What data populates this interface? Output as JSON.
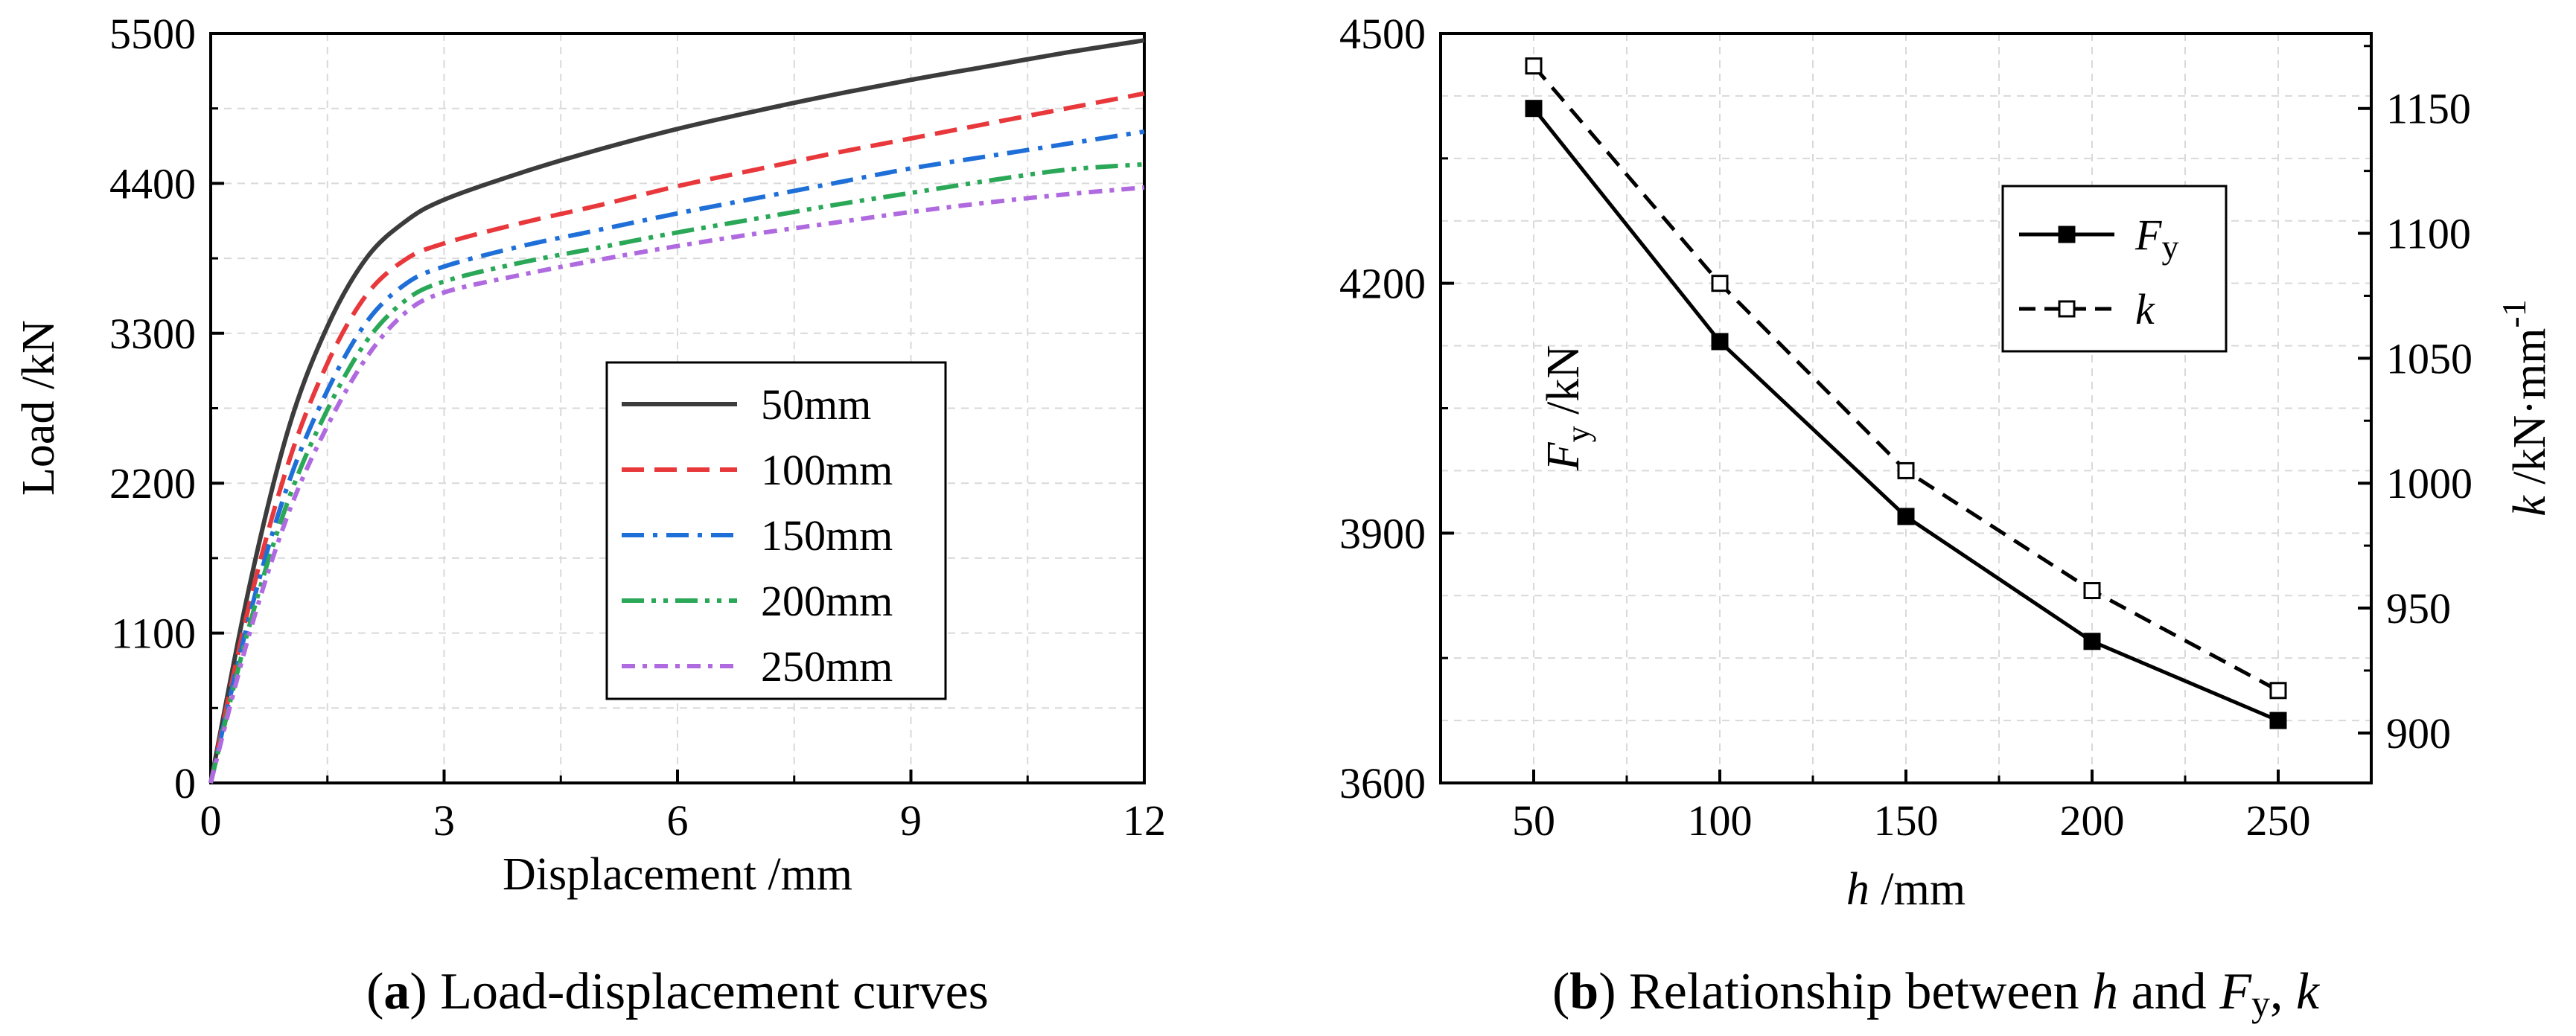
{
  "chart_data": [
    {
      "type": "line",
      "panel": "a",
      "xlabel": "Displacement  /mm",
      "ylabel": "Load  /kN",
      "xlim": [
        0,
        12
      ],
      "ylim": [
        0,
        5500
      ],
      "xticks": [
        0,
        3,
        6,
        9,
        12
      ],
      "yticks": [
        0,
        1100,
        2200,
        3300,
        4400,
        5500
      ],
      "grid": true,
      "legend_position": "center-right",
      "x": [
        0,
        0.5,
        1,
        1.5,
        2,
        2.5,
        3,
        4,
        5,
        6,
        7,
        8,
        9,
        10,
        11,
        12
      ],
      "series": [
        {
          "name": "50mm",
          "color": "#3c3c3c",
          "dash": "solid",
          "values": [
            0,
            1450,
            2600,
            3350,
            3850,
            4120,
            4280,
            4480,
            4650,
            4800,
            4930,
            5050,
            5160,
            5260,
            5360,
            5450
          ]
        },
        {
          "name": "100mm",
          "color": "#e8383c",
          "dash": "dash",
          "values": [
            0,
            1320,
            2350,
            3080,
            3580,
            3840,
            3960,
            4110,
            4240,
            4380,
            4500,
            4620,
            4730,
            4840,
            4950,
            5060
          ]
        },
        {
          "name": "150mm",
          "color": "#1f6fd8",
          "dash": "dashdot",
          "values": [
            0,
            1230,
            2200,
            2880,
            3380,
            3660,
            3790,
            3940,
            4060,
            4180,
            4290,
            4400,
            4510,
            4600,
            4690,
            4780
          ]
        },
        {
          "name": "200mm",
          "color": "#2aa858",
          "dash": "dashdotdot",
          "values": [
            0,
            1160,
            2080,
            2740,
            3240,
            3540,
            3680,
            3820,
            3930,
            4040,
            4140,
            4240,
            4330,
            4420,
            4500,
            4540
          ]
        },
        {
          "name": "250mm",
          "color": "#b06ae0",
          "dash": "shortdashdot",
          "values": [
            0,
            1100,
            1980,
            2620,
            3120,
            3450,
            3600,
            3730,
            3840,
            3940,
            4030,
            4110,
            4190,
            4260,
            4320,
            4370
          ]
        }
      ],
      "caption_label": "a",
      "caption_text": ") Load-displacement curves"
    },
    {
      "type": "line",
      "panel": "b",
      "xlabel": "h",
      "xlabel_unit": "  /mm",
      "ylabel_left": "F",
      "ylabel_left_sub": "y",
      "ylabel_left_unit": "  /kN",
      "ylabel_right": "k",
      "ylabel_right_unit": "  /kN·mm",
      "ylabel_right_sup": "-1",
      "xlim": [
        25,
        275
      ],
      "ylim_left": [
        3600,
        4500
      ],
      "ylim_right": [
        880,
        1180
      ],
      "xticks": [
        50,
        100,
        150,
        200,
        250
      ],
      "yticks_left": [
        3600,
        3900,
        4200,
        4500
      ],
      "yticks_right": [
        900,
        950,
        1000,
        1050,
        1100,
        1150
      ],
      "grid": true,
      "legend_position": "upper-right",
      "categories": [
        50,
        100,
        150,
        200,
        250
      ],
      "series": [
        {
          "name": "F",
          "name_sub": "y",
          "axis": "left",
          "dash": "solid",
          "marker": "filled-square",
          "values": [
            4410,
            4130,
            3920,
            3770,
            3675
          ]
        },
        {
          "name": "k",
          "axis": "right",
          "dash": "dash",
          "marker": "open-square",
          "values": [
            1167,
            1080,
            1005,
            957,
            917
          ]
        }
      ],
      "caption_label": "b",
      "caption_pre": ") Relationship between ",
      "caption_h": "h",
      "caption_and": " and ",
      "caption_f": "F",
      "caption_fsub": "y",
      "caption_comma": ", ",
      "caption_k": "k"
    }
  ]
}
